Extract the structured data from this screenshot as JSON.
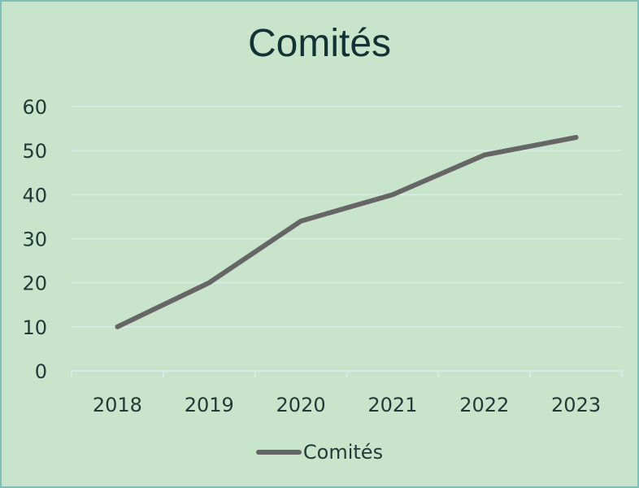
{
  "colors": {
    "background": "#c8e4cb",
    "border": "#7fbfb6",
    "grid": "#d7ecef",
    "series": "#666666",
    "text": "#1f3a38",
    "title": "#123234"
  },
  "chart_data": {
    "type": "line",
    "title": "Comités",
    "xlabel": "",
    "ylabel": "",
    "categories": [
      "2018",
      "2019",
      "2020",
      "2021",
      "2022",
      "2023"
    ],
    "series": [
      {
        "name": "Comités",
        "values": [
          10,
          20,
          34,
          40,
          49,
          53
        ]
      }
    ],
    "ylim": [
      0,
      60
    ],
    "yticks": [
      "0",
      "10",
      "20",
      "30",
      "40",
      "50",
      "60"
    ],
    "grid": true,
    "legend": "bottom"
  }
}
